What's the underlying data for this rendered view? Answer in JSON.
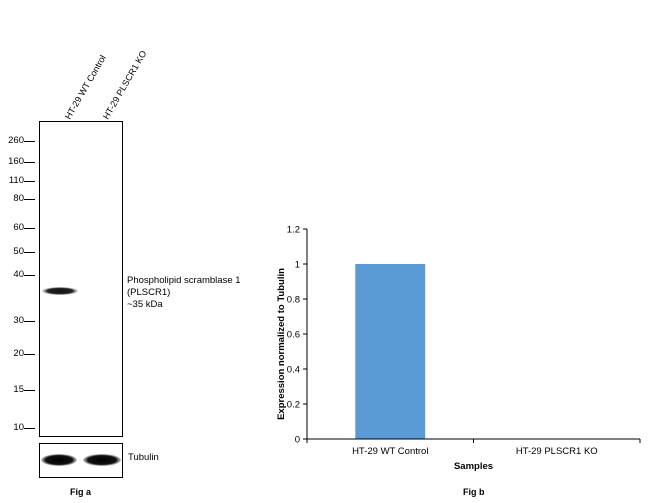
{
  "fig_a": {
    "lanes": [
      "HT-29 WT Control",
      "HT-29 PLSCR1 KO"
    ],
    "markers": [
      "260",
      "160",
      "110",
      "80",
      "60",
      "50",
      "40",
      "30",
      "20",
      "15",
      "10"
    ],
    "band_annotation": [
      "Phospholipid scramblase 1",
      "(PLSCR1)",
      "~35 kDa"
    ],
    "loading_control": "Tubulin",
    "label": "Fig a"
  },
  "fig_b": {
    "label": "Fig b"
  },
  "chart_data": {
    "type": "bar",
    "categories": [
      "HT-29 WT Control",
      "HT-29 PLSCR1 KO"
    ],
    "values": [
      1,
      0
    ],
    "xlabel": "Samples",
    "ylabel": "Expression normalized to Tubulin",
    "ylim": [
      0,
      1.2
    ],
    "yticks": [
      0,
      0.2,
      0.4,
      0.6,
      0.8,
      1,
      1.2
    ],
    "ytick_labels": [
      "0",
      "0.2",
      "0.4",
      "0.6",
      "0.8",
      "1",
      "1.2"
    ],
    "bar_color": "#5b9bd5",
    "grid": false
  }
}
